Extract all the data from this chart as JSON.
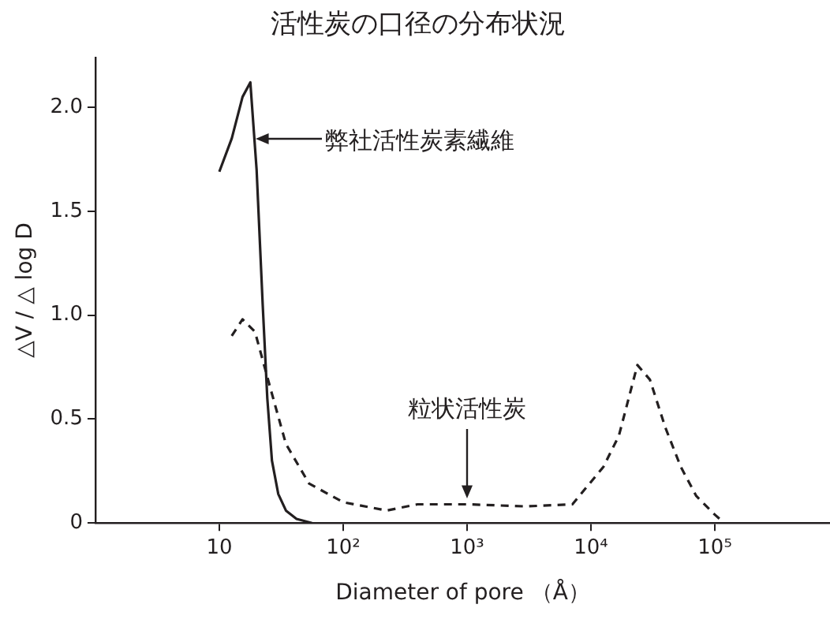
{
  "chart_data": {
    "type": "line",
    "title": "活性炭の口径の分布状況",
    "xlabel": "Diameter of pore （Å）",
    "ylabel": "△V / △ log D",
    "log": "x",
    "xlim": [
      1,
      850000
    ],
    "ylim": [
      0,
      2.24
    ],
    "xticks": [
      10,
      {
        "value": 100,
        "label": "10²"
      },
      {
        "value": 1000,
        "label": "10³"
      },
      {
        "value": 10000,
        "label": "10⁴"
      },
      {
        "value": 100000,
        "label": "10⁵"
      }
    ],
    "yticks": [
      0,
      0.5,
      {
        "value": 1,
        "label": "1.0"
      },
      1.5,
      {
        "value": 2,
        "label": "2.0"
      }
    ],
    "grid": false,
    "marker": "none",
    "series": [
      {
        "color": "#231f20",
        "line_style": "solid",
        "x": [
          10,
          12.6,
          15.4,
          17.8,
          20,
          22.4,
          24.4,
          26.6,
          29.9,
          34.5,
          42,
          56
        ],
        "values": [
          1.69,
          1.85,
          2.05,
          2.12,
          1.7,
          1.05,
          0.6,
          0.3,
          0.14,
          0.06,
          0.02,
          0
        ]
      },
      {
        "color": "#231f20",
        "line_style": "dashed",
        "x": [
          12.6,
          15.4,
          19.4,
          25.8,
          34.5,
          53,
          100,
          224,
          398,
          1000,
          2980,
          7080,
          12600,
          16800,
          23700,
          29900,
          39800,
          53100,
          70800,
          100000,
          119000
        ],
        "values": [
          0.9,
          0.98,
          0.92,
          0.65,
          0.38,
          0.19,
          0.1,
          0.06,
          0.09,
          0.09,
          0.08,
          0.09,
          0.27,
          0.42,
          0.76,
          0.69,
          0.46,
          0.27,
          0.13,
          0.04,
          0
        ]
      }
    ],
    "annotations": [
      {
        "text": "弊社活性炭素繊維",
        "x": 19.5,
        "y": 1.85
      },
      {
        "text": "粒状活性炭",
        "x": 1000,
        "y": 0.12
      }
    ]
  }
}
